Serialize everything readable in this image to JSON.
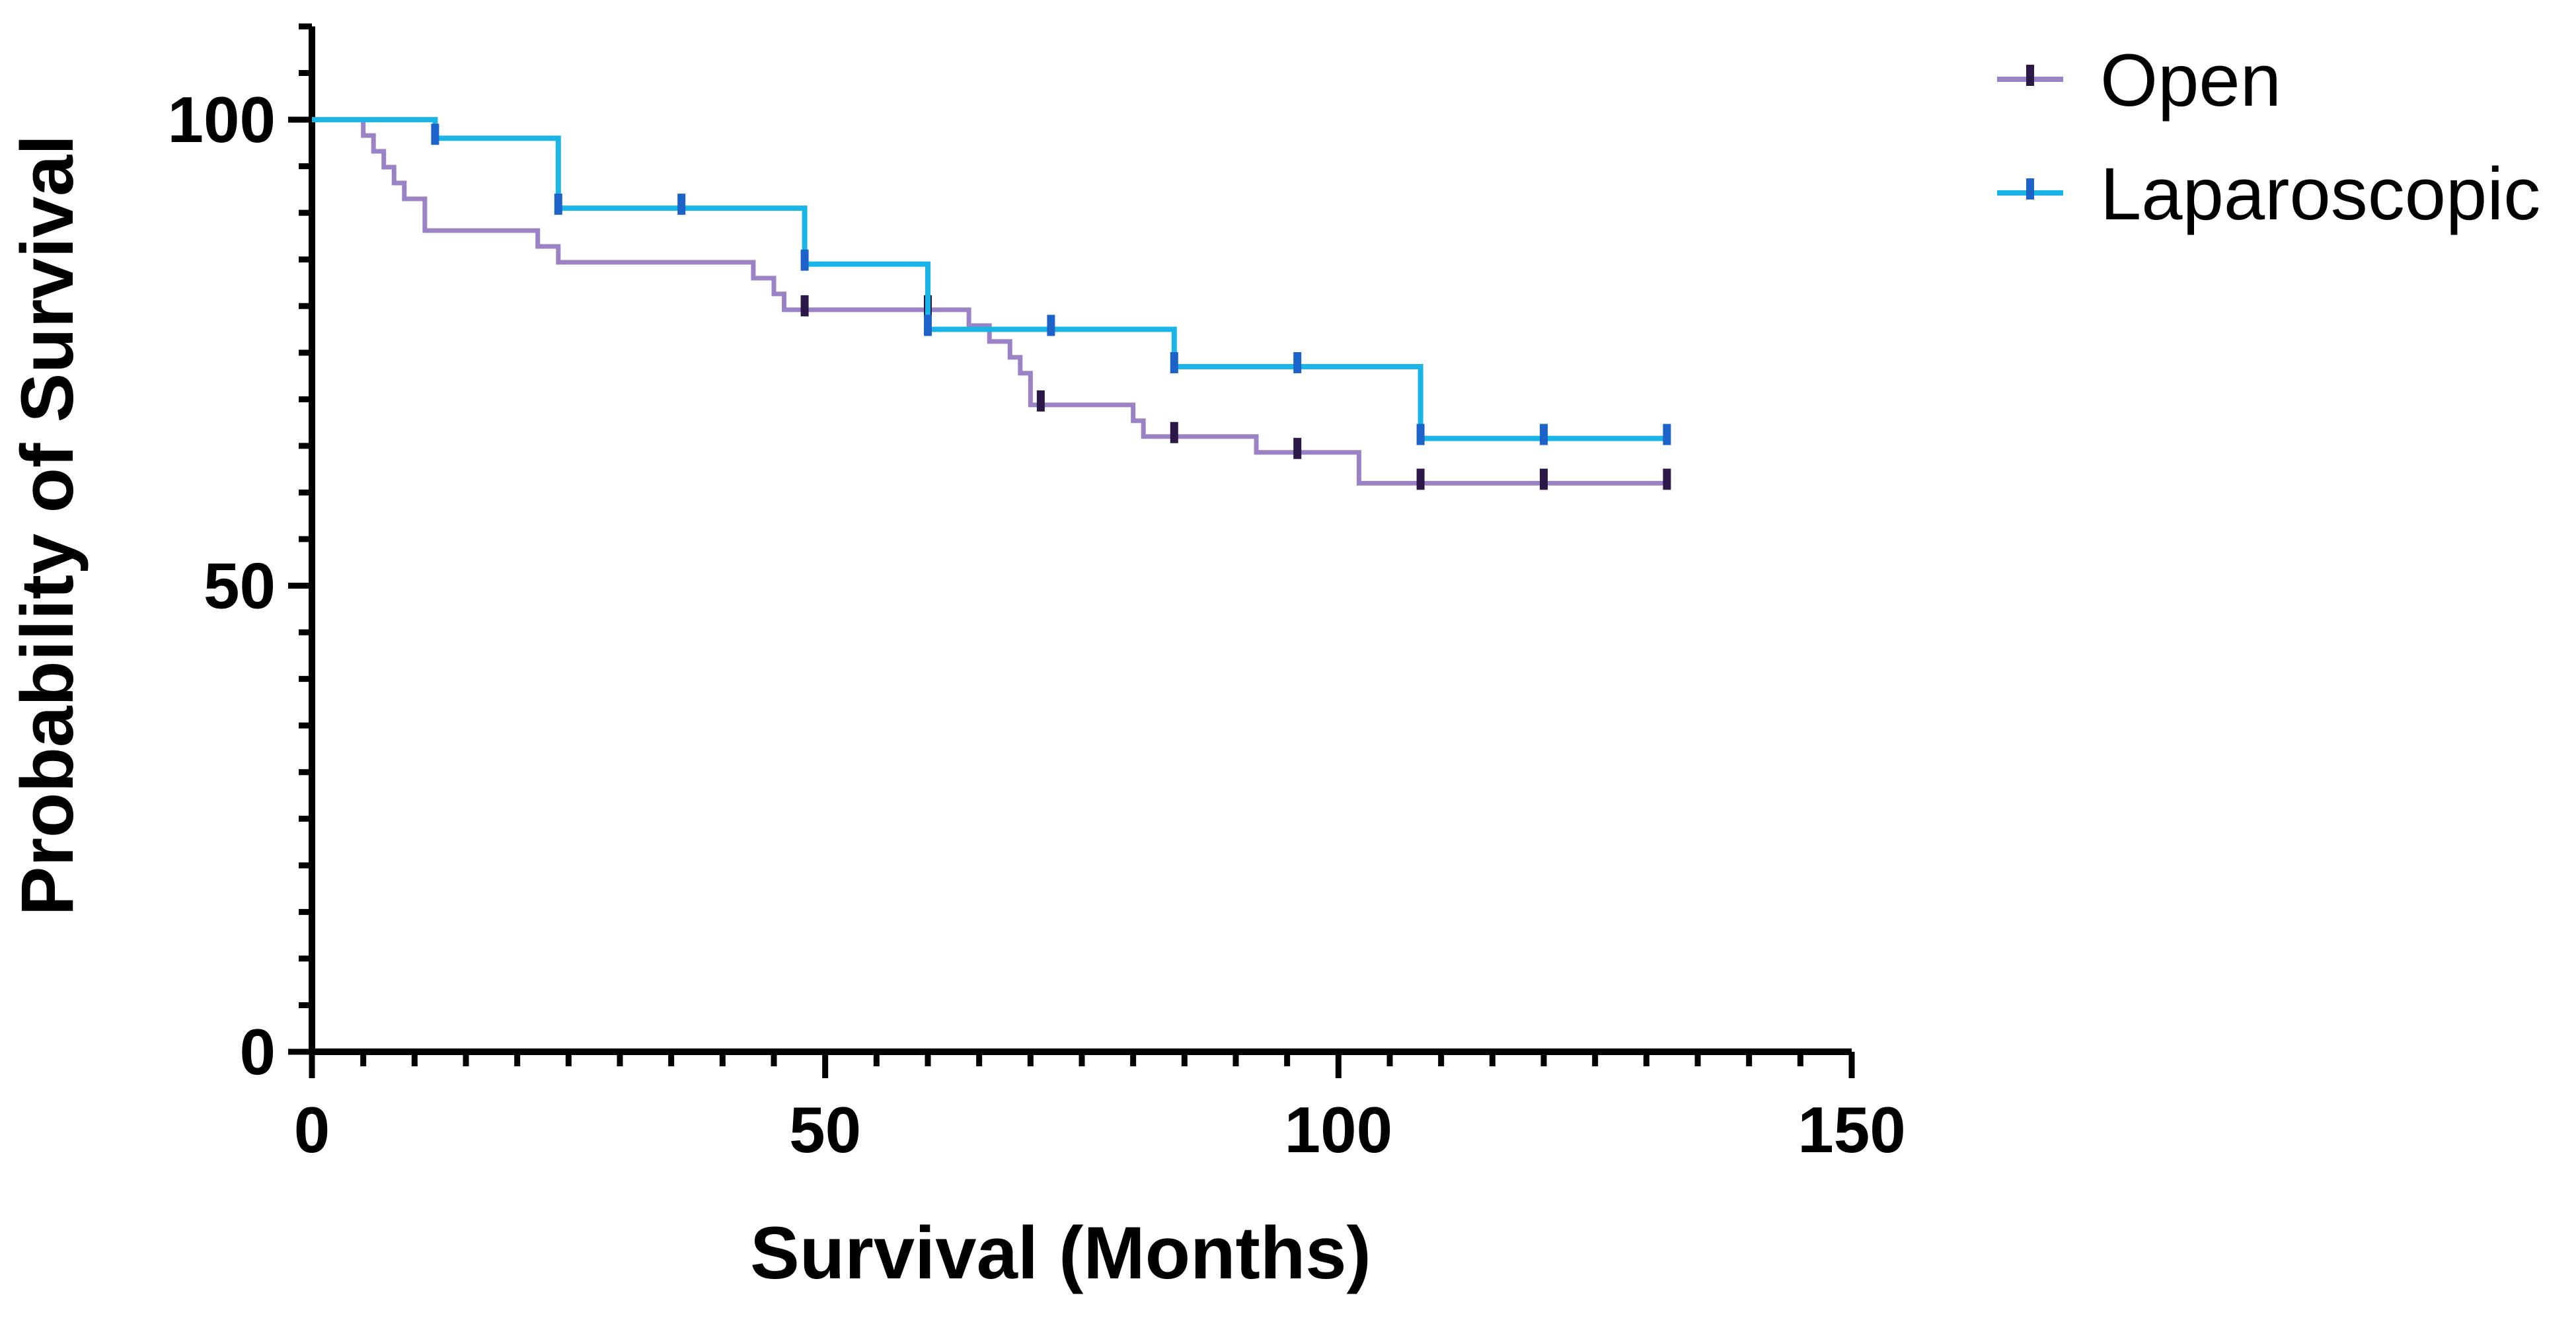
{
  "chart_data": {
    "type": "line",
    "subtype": "kaplan-meier",
    "title": "",
    "xlabel": "Survival (Months)",
    "ylabel": "Probability of Survival",
    "xlim": [
      0,
      150
    ],
    "ylim": [
      0,
      110
    ],
    "x_ticks": [
      0,
      50,
      100,
      150
    ],
    "x_tick_labels": [
      "0",
      "50",
      "100",
      "150"
    ],
    "y_ticks": [
      0,
      50,
      100
    ],
    "y_tick_labels": [
      "0",
      "50",
      "100"
    ],
    "grid": false,
    "legend_position": "top-right",
    "series": [
      {
        "name": "Open",
        "color": "#9b82c6",
        "censor_color": "#2b1748",
        "steps": [
          [
            0,
            100
          ],
          [
            5,
            98.3
          ],
          [
            6,
            96.6
          ],
          [
            7,
            94.9
          ],
          [
            8,
            93.2
          ],
          [
            9,
            91.5
          ],
          [
            11,
            88.1
          ],
          [
            22,
            86.4
          ],
          [
            24,
            84.7
          ],
          [
            43,
            83.0
          ],
          [
            45,
            81.3
          ],
          [
            46,
            79.6
          ],
          [
            64,
            77.9
          ],
          [
            66,
            76.2
          ],
          [
            68,
            74.5
          ],
          [
            69,
            72.8
          ],
          [
            70,
            69.4
          ],
          [
            80,
            67.7
          ],
          [
            81,
            66.0
          ],
          [
            92,
            64.3
          ],
          [
            102,
            61.0
          ],
          [
            132,
            61.0
          ]
        ],
        "censored": [
          [
            48,
            79.6
          ],
          [
            60,
            79.6
          ],
          [
            71,
            69.4
          ],
          [
            84,
            66.0
          ],
          [
            96,
            64.3
          ],
          [
            108,
            61.0
          ],
          [
            120,
            61.0
          ],
          [
            132,
            61.0
          ]
        ]
      },
      {
        "name": "Laparoscopic",
        "color": "#1ab4e6",
        "censor_color": "#1c62c9",
        "steps": [
          [
            0,
            100
          ],
          [
            12,
            98.0
          ],
          [
            24,
            90.5
          ],
          [
            48,
            84.5
          ],
          [
            60,
            77.5
          ],
          [
            84,
            73.5
          ],
          [
            108,
            65.8
          ],
          [
            132,
            65.8
          ]
        ],
        "censored": [
          [
            12,
            98.0
          ],
          [
            24,
            90.5
          ],
          [
            36,
            90.5
          ],
          [
            48,
            84.5
          ],
          [
            60,
            77.5
          ],
          [
            72,
            77.5
          ],
          [
            84,
            73.5
          ],
          [
            96,
            73.5
          ],
          [
            108,
            65.8
          ],
          [
            120,
            65.8
          ],
          [
            132,
            65.8
          ]
        ]
      }
    ]
  }
}
